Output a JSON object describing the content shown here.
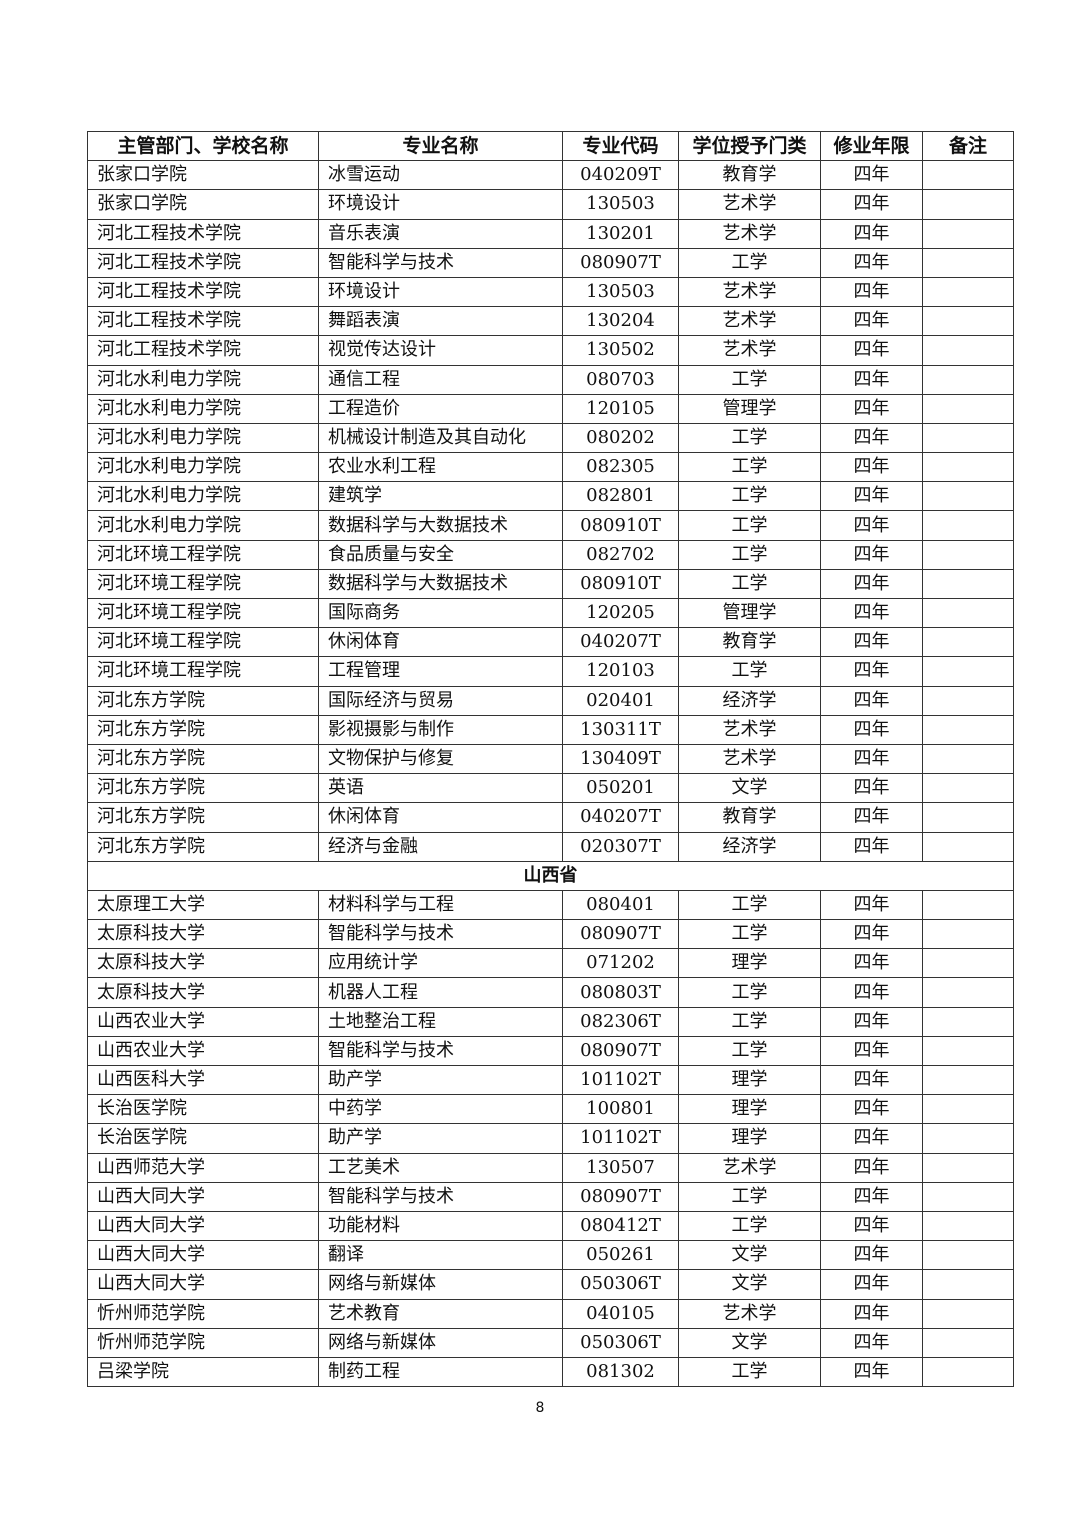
{
  "headers": [
    "主管部门、学校名称",
    "专业名称",
    "专业代码",
    "学位授予门类",
    "修业年限",
    "备注"
  ],
  "rows_before": [
    [
      "张家口学院",
      "冰雪运动",
      "040209T",
      "教育学",
      "四年",
      ""
    ],
    [
      "张家口学院",
      "环境设计",
      "130503",
      "艺术学",
      "四年",
      ""
    ],
    [
      "河北工程技术学院",
      "音乐表演",
      "130201",
      "艺术学",
      "四年",
      ""
    ],
    [
      "河北工程技术学院",
      "智能科学与技术",
      "080907T",
      "工学",
      "四年",
      ""
    ],
    [
      "河北工程技术学院",
      "环境设计",
      "130503",
      "艺术学",
      "四年",
      ""
    ],
    [
      "河北工程技术学院",
      "舞蹈表演",
      "130204",
      "艺术学",
      "四年",
      ""
    ],
    [
      "河北工程技术学院",
      "视觉传达设计",
      "130502",
      "艺术学",
      "四年",
      ""
    ],
    [
      "河北水利电力学院",
      "通信工程",
      "080703",
      "工学",
      "四年",
      ""
    ],
    [
      "河北水利电力学院",
      "工程造价",
      "120105",
      "管理学",
      "四年",
      ""
    ],
    [
      "河北水利电力学院",
      "机械设计制造及其自动化",
      "080202",
      "工学",
      "四年",
      ""
    ],
    [
      "河北水利电力学院",
      "农业水利工程",
      "082305",
      "工学",
      "四年",
      ""
    ],
    [
      "河北水利电力学院",
      "建筑学",
      "082801",
      "工学",
      "四年",
      ""
    ],
    [
      "河北水利电力学院",
      "数据科学与大数据技术",
      "080910T",
      "工学",
      "四年",
      ""
    ],
    [
      "河北环境工程学院",
      "食品质量与安全",
      "082702",
      "工学",
      "四年",
      ""
    ],
    [
      "河北环境工程学院",
      "数据科学与大数据技术",
      "080910T",
      "工学",
      "四年",
      ""
    ],
    [
      "河北环境工程学院",
      "国际商务",
      "120205",
      "管理学",
      "四年",
      ""
    ],
    [
      "河北环境工程学院",
      "休闲体育",
      "040207T",
      "教育学",
      "四年",
      ""
    ],
    [
      "河北环境工程学院",
      "工程管理",
      "120103",
      "工学",
      "四年",
      ""
    ],
    [
      "河北东方学院",
      "国际经济与贸易",
      "020401",
      "经济学",
      "四年",
      ""
    ],
    [
      "河北东方学院",
      "影视摄影与制作",
      "130311T",
      "艺术学",
      "四年",
      ""
    ],
    [
      "河北东方学院",
      "文物保护与修复",
      "130409T",
      "艺术学",
      "四年",
      ""
    ],
    [
      "河北东方学院",
      "英语",
      "050201",
      "文学",
      "四年",
      ""
    ],
    [
      "河北东方学院",
      "休闲体育",
      "040207T",
      "教育学",
      "四年",
      ""
    ],
    [
      "河北东方学院",
      "经济与金融",
      "020307T",
      "经济学",
      "四年",
      ""
    ]
  ],
  "province": "山西省",
  "rows_after": [
    [
      "太原理工大学",
      "材料科学与工程",
      "080401",
      "工学",
      "四年",
      ""
    ],
    [
      "太原科技大学",
      "智能科学与技术",
      "080907T",
      "工学",
      "四年",
      ""
    ],
    [
      "太原科技大学",
      "应用统计学",
      "071202",
      "理学",
      "四年",
      ""
    ],
    [
      "太原科技大学",
      "机器人工程",
      "080803T",
      "工学",
      "四年",
      ""
    ],
    [
      "山西农业大学",
      "土地整治工程",
      "082306T",
      "工学",
      "四年",
      ""
    ],
    [
      "山西农业大学",
      "智能科学与技术",
      "080907T",
      "工学",
      "四年",
      ""
    ],
    [
      "山西医科大学",
      "助产学",
      "101102T",
      "理学",
      "四年",
      ""
    ],
    [
      "长治医学院",
      "中药学",
      "100801",
      "理学",
      "四年",
      ""
    ],
    [
      "长治医学院",
      "助产学",
      "101102T",
      "理学",
      "四年",
      ""
    ],
    [
      "山西师范大学",
      "工艺美术",
      "130507",
      "艺术学",
      "四年",
      ""
    ],
    [
      "山西大同大学",
      "智能科学与技术",
      "080907T",
      "工学",
      "四年",
      ""
    ],
    [
      "山西大同大学",
      "功能材料",
      "080412T",
      "工学",
      "四年",
      ""
    ],
    [
      "山西大同大学",
      "翻译",
      "050261",
      "文学",
      "四年",
      ""
    ],
    [
      "山西大同大学",
      "网络与新媒体",
      "050306T",
      "文学",
      "四年",
      ""
    ],
    [
      "忻州师范学院",
      "艺术教育",
      "040105",
      "艺术学",
      "四年",
      ""
    ],
    [
      "忻州师范学院",
      "网络与新媒体",
      "050306T",
      "文学",
      "四年",
      ""
    ],
    [
      "吕梁学院",
      "制药工程",
      "081302",
      "工学",
      "四年",
      ""
    ]
  ],
  "page_number": "8"
}
